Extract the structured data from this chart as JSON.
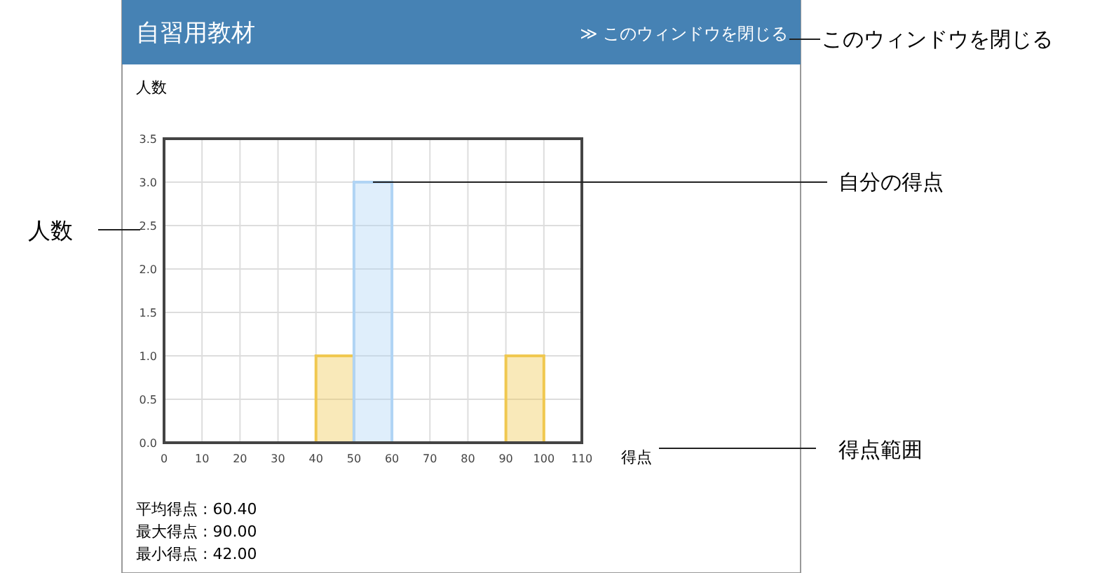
{
  "chart_data": {
    "type": "histogram",
    "title": "自習用教材",
    "ylabel": "人数",
    "xlabel": "得点",
    "bins": [
      0,
      10,
      20,
      30,
      40,
      50,
      60,
      70,
      80,
      90,
      100,
      110
    ],
    "values": [
      0,
      0,
      0,
      0,
      1,
      3,
      0,
      0,
      0,
      1,
      0
    ],
    "colors": [
      "#f0c850",
      "#f0c850",
      "#f0c850",
      "#f0c850",
      "#f0c850",
      "#b0d4f4",
      "#f0c850",
      "#f0c850",
      "#f0c850",
      "#f0c850",
      "#f0c850"
    ],
    "xlim": [
      0,
      110
    ],
    "xticks": [
      0,
      10,
      20,
      30,
      40,
      50,
      60,
      70,
      80,
      90,
      100,
      110
    ],
    "ylim": [
      0,
      3.5
    ],
    "yticks": [
      {
        "value": 0,
        "label": "0.0"
      },
      {
        "value": 0.5,
        "label": "0.5"
      },
      {
        "value": 1,
        "label": "1.0"
      },
      {
        "value": 1.5,
        "label": "1.5"
      },
      {
        "value": 2,
        "label": "2.0"
      },
      {
        "value": 2.5,
        "label": "2.5"
      },
      {
        "value": 3,
        "label": "3.0"
      },
      {
        "value": 3.5,
        "label": "3.5"
      }
    ],
    "grid": true,
    "annotations": [
      "≫ このウィンドウを閉じる",
      "平均得点 : 60.40",
      "最大得点 : 90.00",
      "最小得点 : 42.00",
      "このウィンドウを閉じる",
      "人数",
      {
        "text": "自分の得点",
        "x": 55,
        "y": 3
      },
      "得点範囲"
    ]
  }
}
